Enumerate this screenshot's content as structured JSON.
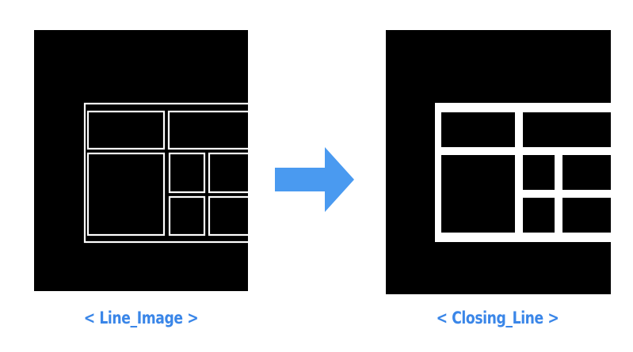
{
  "captions": {
    "left": "< Line_Image >",
    "right": "< Closing_Line >"
  },
  "colors": {
    "caption": "#3a86e8",
    "arrow": "#4a9af0",
    "panel_background": "#000000",
    "line": "#ffffff",
    "page_background": "#ffffff"
  },
  "icons": {
    "arrow": "right-arrow-icon"
  }
}
